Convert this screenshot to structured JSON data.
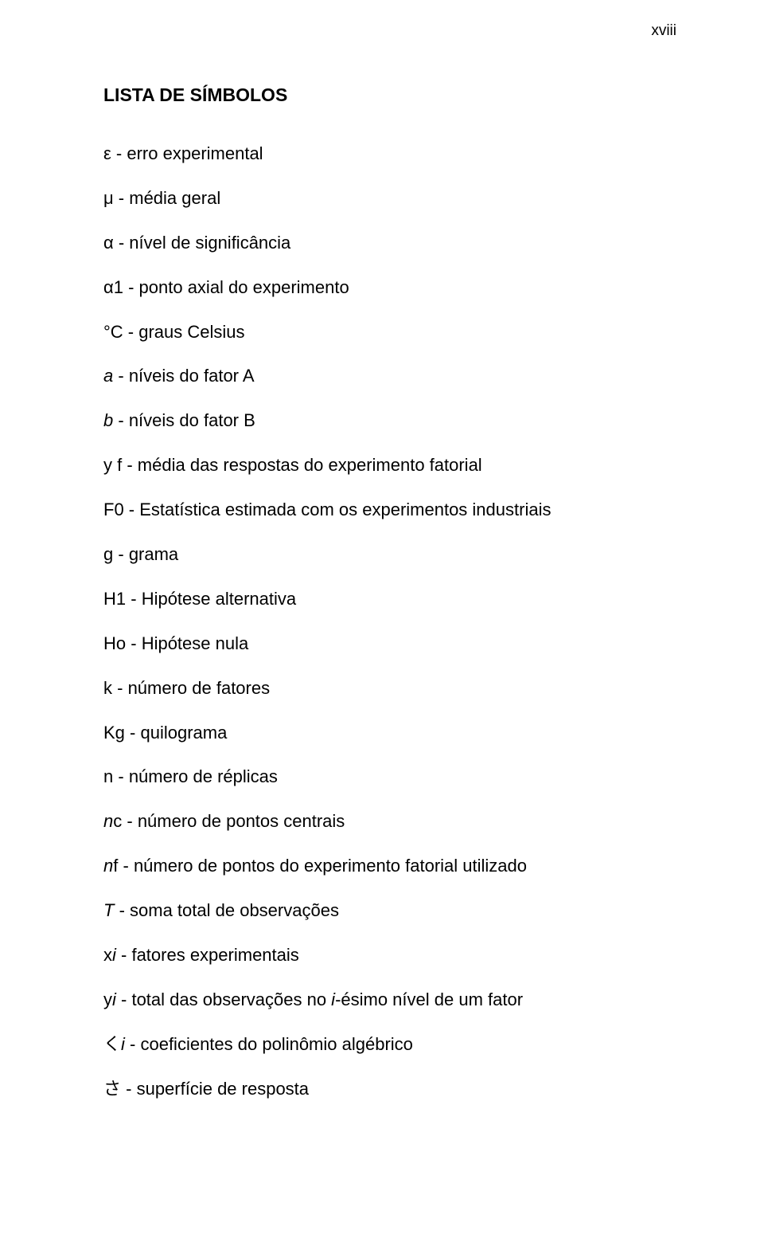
{
  "page_number": "xviii",
  "heading": "LISTA DE SÍMBOLOS",
  "symbols": [
    {
      "sym": "ε",
      "sym_italic": false,
      "desc": "erro experimental"
    },
    {
      "sym": "μ",
      "sym_italic": false,
      "desc": "média geral"
    },
    {
      "sym": "α",
      "sym_italic": false,
      "desc": "nível de significância"
    },
    {
      "sym": "α1",
      "sym_italic": false,
      "desc": "ponto axial do experimento"
    },
    {
      "sym": "°C",
      "sym_italic": false,
      "desc": "graus Celsius"
    },
    {
      "sym": "a",
      "sym_italic": true,
      "desc": "níveis do fator A"
    },
    {
      "sym": "b",
      "sym_italic": true,
      "desc": "níveis do fator B"
    },
    {
      "sym": "y f",
      "sym_italic": false,
      "desc": "média das respostas do experimento fatorial"
    },
    {
      "sym": "F0",
      "sym_italic": false,
      "desc": "Estatística estimada com os experimentos industriais"
    },
    {
      "sym": "g",
      "sym_italic": false,
      "desc": "grama",
      "sep": " -  "
    },
    {
      "sym": "H1",
      "sym_italic": false,
      "desc": "Hipótese alternativa"
    },
    {
      "sym": "Ho",
      "sym_italic": false,
      "desc": "Hipótese nula"
    },
    {
      "sym": "k",
      "sym_italic": false,
      "desc": "número de fatores"
    },
    {
      "sym": "Kg",
      "sym_italic": false,
      "desc": "quilograma"
    },
    {
      "sym": "n",
      "sym_italic": false,
      "desc": "número de réplicas"
    },
    {
      "sym_prefix_italic": "n",
      "sym_suffix": "c",
      "desc": "número de pontos centrais"
    },
    {
      "sym_prefix_italic": "n",
      "sym_suffix": "f",
      "desc": "número de pontos do experimento fatorial utilizado"
    },
    {
      "sym": "T",
      "sym_italic": true,
      "desc": "soma total de observações"
    },
    {
      "sym_prefix": "x",
      "sym_suffix_italic": "i",
      "desc": "fatores experimentais"
    },
    {
      "sym_prefix": "y",
      "sym_suffix_italic": "i",
      "desc_html": "total das observações no <i>i</i>-ésimo nível de um fator"
    },
    {
      "sym_html": "く<i>i</i>",
      "desc": "coeficientes do polinômio algébrico"
    },
    {
      "sym": "さ",
      "sym_italic": false,
      "desc": "superfície de resposta"
    }
  ],
  "default_sep": " - "
}
